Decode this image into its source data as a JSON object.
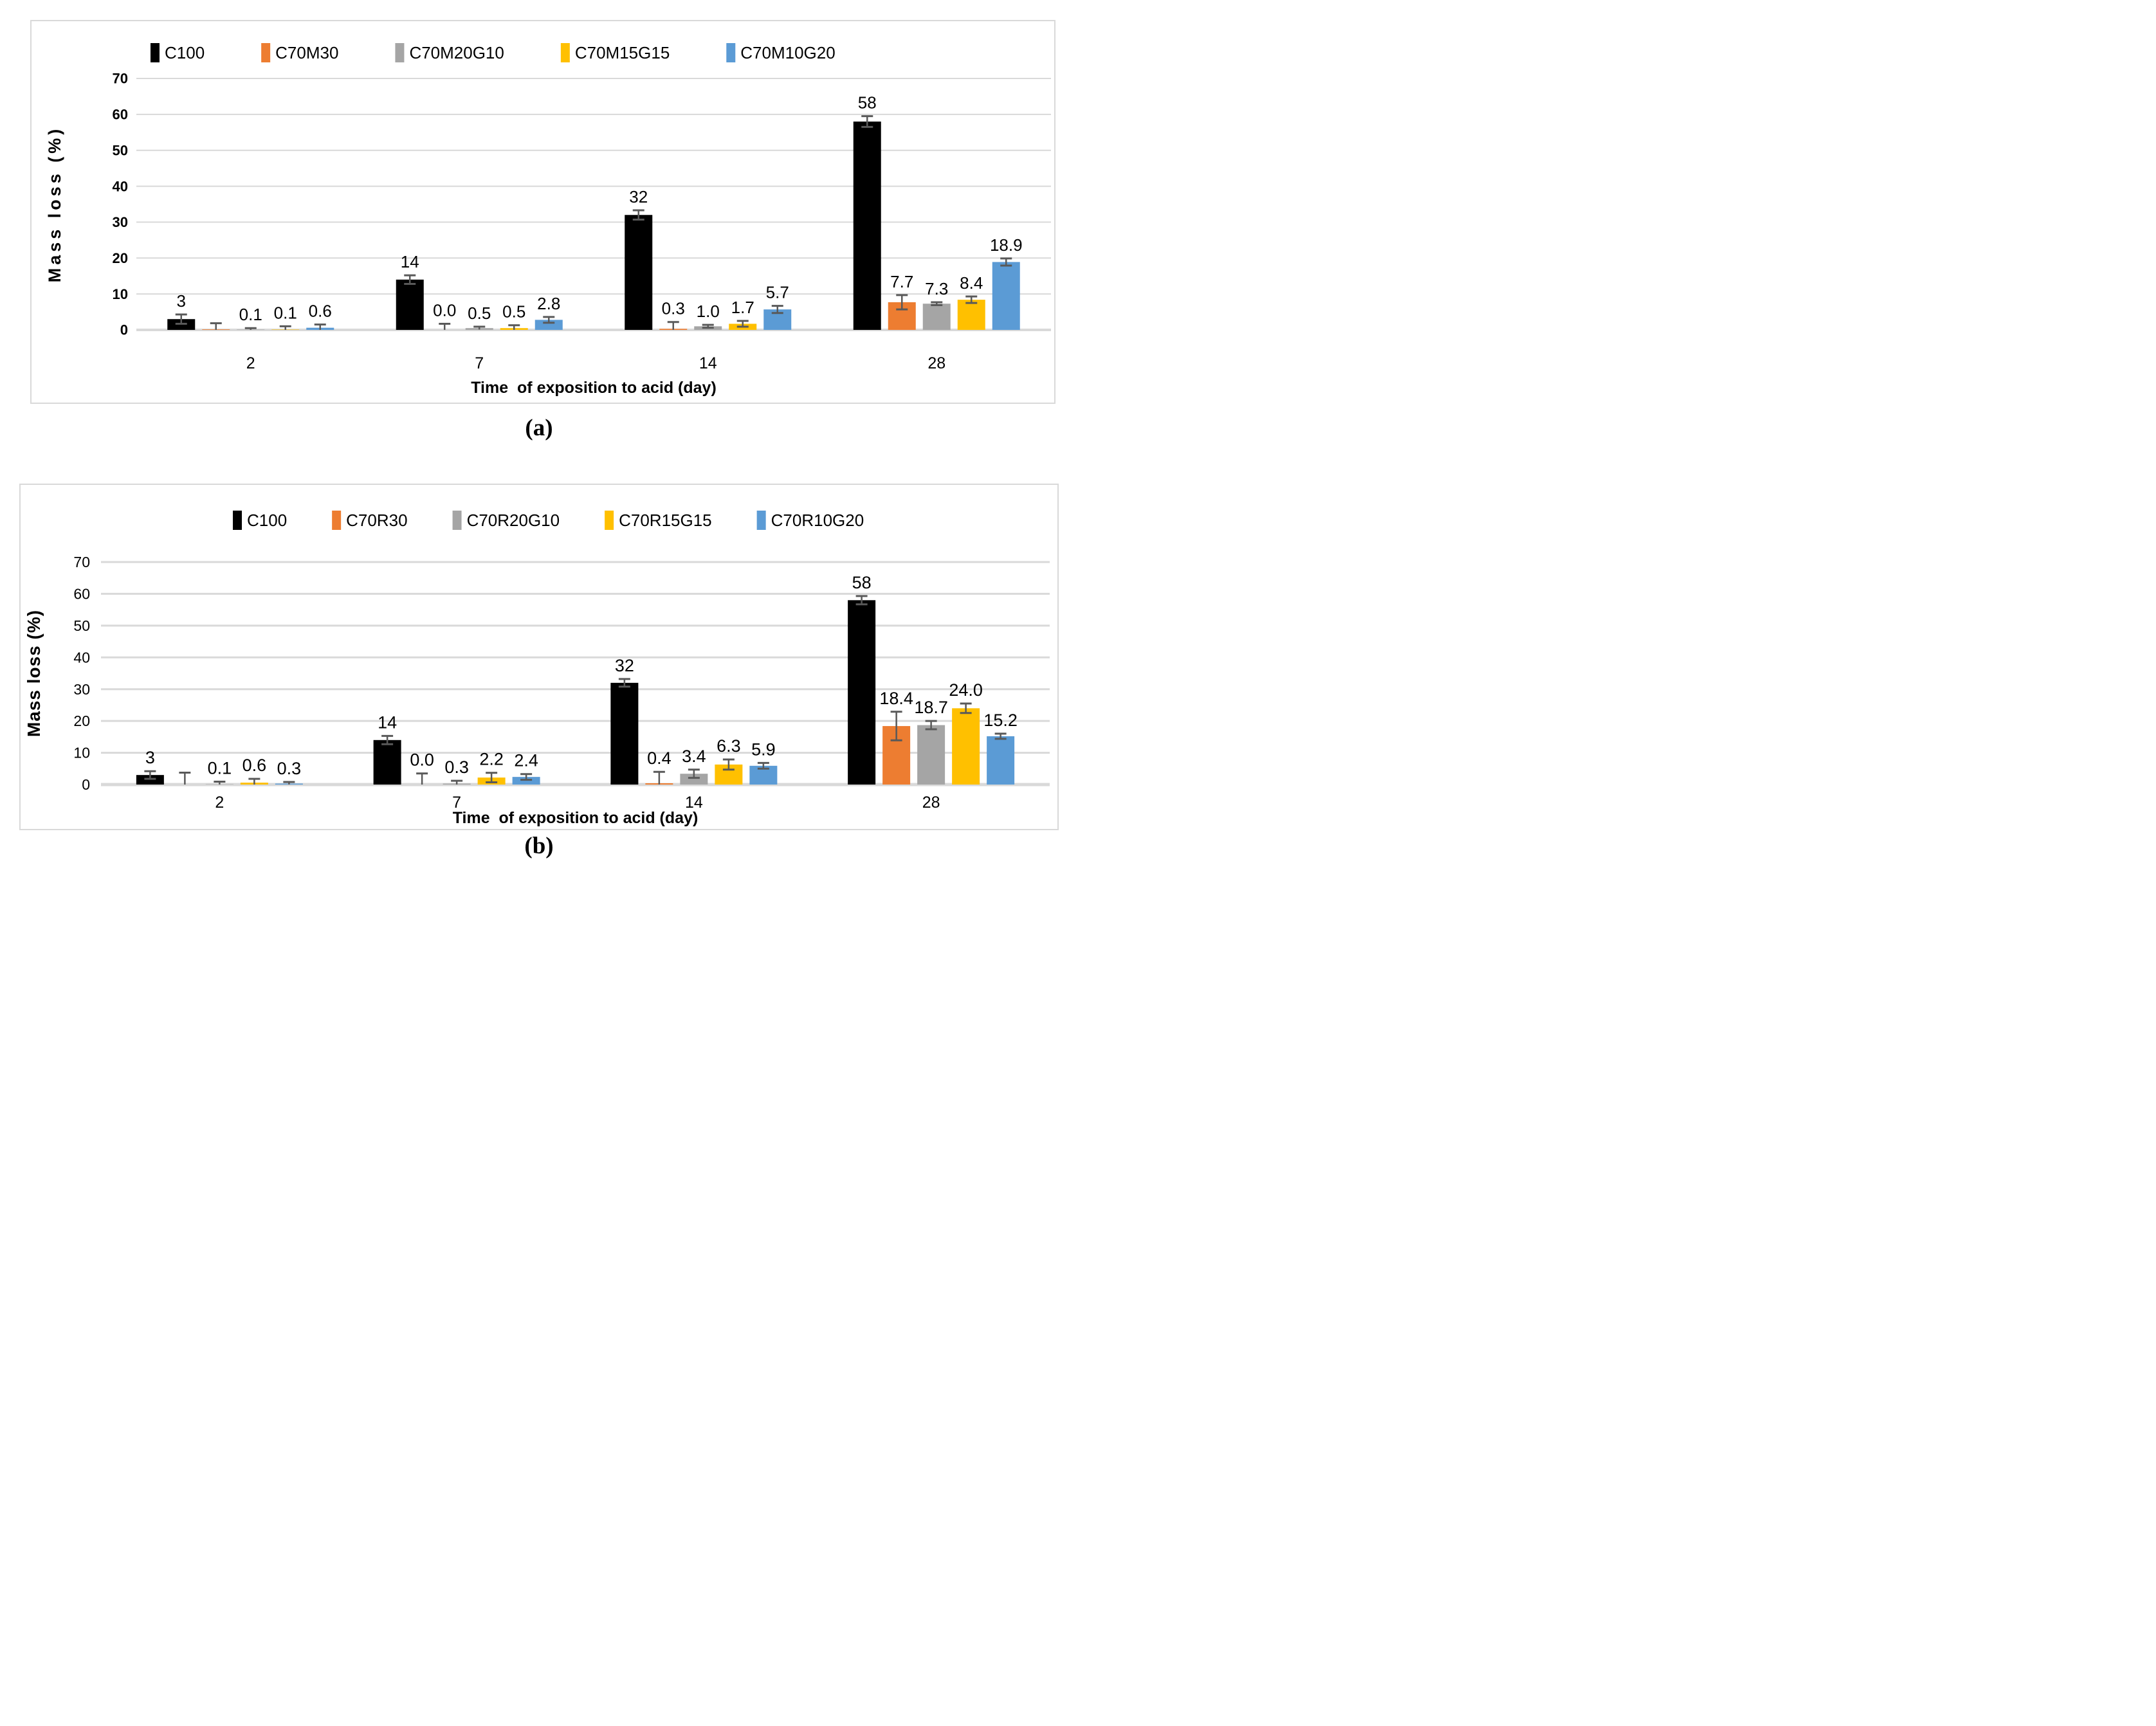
{
  "figure": {
    "captions": {
      "a": "(a)",
      "b": "(b)"
    }
  },
  "style_colors": {
    "grid": "#d9d9d9",
    "error_bar": "#595959",
    "panel_border": "#d9d9d9",
    "background": "#ffffff"
  },
  "chart_data": [
    {
      "id": "a",
      "type": "bar",
      "title": "",
      "xlabel": "Time  of exposition to acid (day)",
      "ylabel": "Mass loss (%)",
      "ylim": [
        0,
        70
      ],
      "yticks": [
        0,
        10,
        20,
        30,
        40,
        50,
        60,
        70
      ],
      "categories": [
        "2",
        "7",
        "14",
        "28"
      ],
      "grid": true,
      "legend_position": "top",
      "series": [
        {
          "name": "C100",
          "color": "#000000",
          "values": [
            3,
            14,
            32,
            58
          ],
          "labels": [
            "3",
            "14",
            "32",
            "58"
          ],
          "errors": [
            1.3,
            1.2,
            1.3,
            1.5
          ]
        },
        {
          "name": "C70M30",
          "color": "#ED7D31",
          "values": [
            0.15,
            0,
            0.3,
            7.7
          ],
          "labels": [
            "",
            "0.0",
            "0.3",
            "7.7"
          ],
          "errors": [
            1.7,
            1.7,
            1.9,
            2.0
          ]
        },
        {
          "name": "C70M20G10",
          "color": "#A5A5A5",
          "values": [
            0.1,
            0.5,
            1.0,
            7.3
          ],
          "labels": [
            "0.1",
            "0.5",
            "1.0",
            "7.3"
          ],
          "errors": [
            0.4,
            0.4,
            0.4,
            0.4
          ]
        },
        {
          "name": "C70M15G15",
          "color": "#FFC000",
          "values": [
            0.1,
            0.5,
            1.7,
            8.4
          ],
          "labels": [
            "0.1",
            "0.5",
            "1.7",
            "8.4"
          ],
          "errors": [
            0.9,
            0.8,
            0.8,
            0.9
          ]
        },
        {
          "name": "C70M10G20",
          "color": "#5B9BD5",
          "values": [
            0.6,
            2.8,
            5.7,
            18.9
          ],
          "labels": [
            "0.6",
            "2.8",
            "5.7",
            "18.9"
          ],
          "errors": [
            0.9,
            0.8,
            1.0,
            1.0
          ]
        }
      ]
    },
    {
      "id": "b",
      "type": "bar",
      "title": "",
      "xlabel": "Time  of exposition to acid (day)",
      "ylabel": "Mass loss (%)",
      "ylim": [
        0,
        70
      ],
      "yticks": [
        0,
        10,
        20,
        30,
        40,
        50,
        60,
        70
      ],
      "categories": [
        "2",
        "7",
        "14",
        "28"
      ],
      "grid": true,
      "legend_position": "top",
      "series": [
        {
          "name": "C100",
          "color": "#000000",
          "values": [
            3,
            14,
            32,
            58
          ],
          "labels": [
            "3",
            "14",
            "32",
            "58"
          ],
          "errors": [
            1.2,
            1.3,
            1.2,
            1.3
          ]
        },
        {
          "name": "C70R30",
          "color": "#ED7D31",
          "values": [
            0.05,
            0,
            0.4,
            18.4
          ],
          "labels": [
            "",
            "0.0",
            "0.4",
            "18.4"
          ],
          "errors": [
            3.7,
            3.5,
            3.6,
            4.5
          ]
        },
        {
          "name": "C70R20G10",
          "color": "#A5A5A5",
          "values": [
            0.1,
            0.3,
            3.4,
            18.7
          ],
          "labels": [
            "0.1",
            "0.3",
            "3.4",
            "18.7"
          ],
          "errors": [
            0.8,
            0.9,
            1.3,
            1.3
          ]
        },
        {
          "name": "C70R15G15",
          "color": "#FFC000",
          "values": [
            0.6,
            2.2,
            6.3,
            24.0
          ],
          "labels": [
            "0.6",
            "2.2",
            "6.3",
            "24.0"
          ],
          "errors": [
            1.2,
            1.5,
            1.6,
            1.5
          ]
        },
        {
          "name": "C70R10G20",
          "color": "#5B9BD5",
          "values": [
            0.3,
            2.4,
            5.9,
            15.2
          ],
          "labels": [
            "0.3",
            "2.4",
            "5.9",
            "15.2"
          ],
          "errors": [
            0.5,
            0.9,
            0.9,
            0.8
          ]
        }
      ]
    }
  ]
}
